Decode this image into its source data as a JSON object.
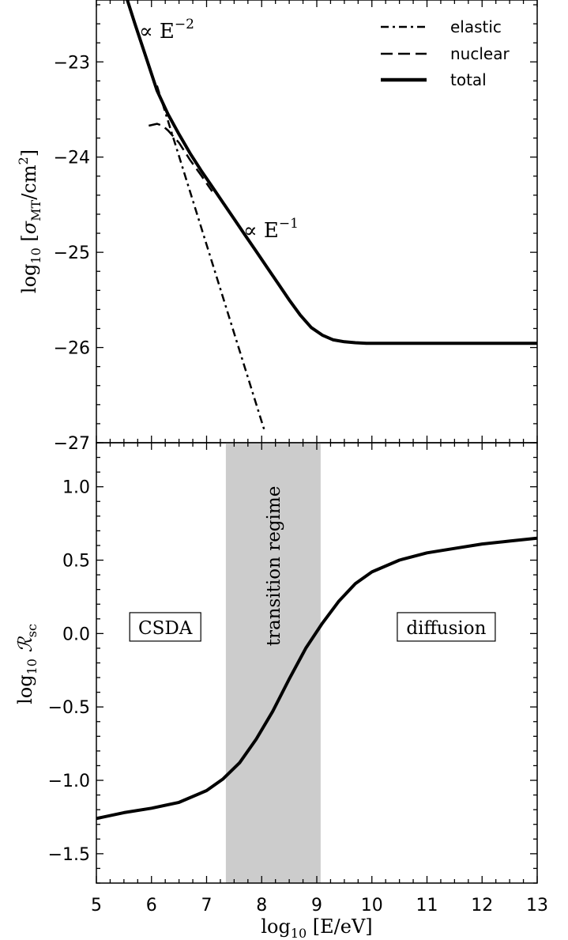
{
  "chart_data": [
    {
      "type": "line",
      "panel": "top",
      "title": "",
      "xlabel": "",
      "ylabel_parts": {
        "prefix": "log",
        "sub": "10",
        "bracket_open": " [",
        "sigma": "σ",
        "sigma_sub": "MT",
        "unit": "/cm",
        "unit_sup": "2",
        "bracket_close": "]"
      },
      "xlim": [
        5,
        13
      ],
      "ylim": [
        -27,
        -22.35
      ],
      "yticks": [
        -23,
        -24,
        -25,
        -26,
        -27
      ],
      "ytick_labels": [
        "−23",
        "−24",
        "−25",
        "−26",
        "−27"
      ],
      "grid": false,
      "legend": {
        "placement": "top-right",
        "entries": [
          {
            "label": "elastic",
            "style": "dash-dot"
          },
          {
            "label": "nuclear",
            "style": "dashed"
          },
          {
            "label": "total",
            "style": "solid-thick"
          }
        ]
      },
      "annotations": [
        {
          "text": "∝ E",
          "sup": "−2",
          "x": 5.78,
          "y": -22.65
        },
        {
          "text": "∝ E",
          "sup": "−1",
          "x": 7.68,
          "y": -24.85
        }
      ],
      "series": [
        {
          "name": "total",
          "style": "solid-thick",
          "x": [
            5.55,
            5.7,
            5.9,
            6.1,
            6.3,
            6.5,
            6.7,
            6.9,
            7.1,
            7.3,
            7.5,
            7.7,
            7.9,
            8.1,
            8.3,
            8.5,
            8.7,
            8.9,
            9.1,
            9.3,
            9.5,
            9.7,
            9.9,
            10.1,
            10.3,
            10.6,
            11.0,
            12.0,
            13.0
          ],
          "y": [
            -22.33,
            -22.6,
            -22.95,
            -23.3,
            -23.55,
            -23.76,
            -23.96,
            -24.14,
            -24.31,
            -24.48,
            -24.65,
            -24.82,
            -24.99,
            -25.16,
            -25.33,
            -25.5,
            -25.66,
            -25.79,
            -25.87,
            -25.92,
            -25.94,
            -25.95,
            -25.955,
            -25.955,
            -25.955,
            -25.955,
            -25.955,
            -25.955,
            -25.955
          ]
        },
        {
          "name": "elastic",
          "style": "dash-dot",
          "x": [
            6.1,
            6.5,
            7.0,
            7.5,
            8.0,
            8.05
          ],
          "y": [
            -23.25,
            -23.99,
            -24.92,
            -25.85,
            -26.78,
            -26.87
          ]
        },
        {
          "name": "nuclear",
          "style": "dashed",
          "x": [
            5.95,
            6.1,
            6.2,
            6.3,
            6.5,
            6.7,
            6.9,
            7.1
          ],
          "y": [
            -23.67,
            -23.65,
            -23.67,
            -23.72,
            -23.85,
            -24.03,
            -24.19,
            -24.36
          ]
        }
      ]
    },
    {
      "type": "line",
      "panel": "bottom",
      "title": "",
      "xlabel_parts": {
        "prefix": "log",
        "sub": "10",
        "rest": " [E/eV]"
      },
      "ylabel_parts": {
        "prefix": "log",
        "sub": "10",
        "R": " ℛ",
        "R_sub": "sc"
      },
      "xlim": [
        5,
        13
      ],
      "ylim": [
        -1.7,
        1.3
      ],
      "xticks": [
        5,
        6,
        7,
        8,
        9,
        10,
        11,
        12,
        13
      ],
      "xtick_labels": [
        "5",
        "6",
        "7",
        "8",
        "9",
        "10",
        "11",
        "12",
        "13"
      ],
      "yticks": [
        1.0,
        0.5,
        0.0,
        -0.5,
        -1.0,
        -1.5
      ],
      "ytick_labels": [
        "1.0",
        "0.5",
        "0.0",
        "−0.5",
        "−1.0",
        "−1.5"
      ],
      "grid": false,
      "shaded_region": {
        "x": [
          7.35,
          9.07
        ],
        "label": "transition regime",
        "color": "#cccccc"
      },
      "boxed_labels": [
        {
          "text": "CSDA",
          "x": 6.25,
          "y": 0.04
        },
        {
          "text": "diffusion",
          "x": 11.35,
          "y": 0.04
        }
      ],
      "series": [
        {
          "name": "",
          "style": "solid-thick",
          "x": [
            5.0,
            5.5,
            6.0,
            6.5,
            7.0,
            7.3,
            7.6,
            7.9,
            8.2,
            8.5,
            8.8,
            9.1,
            9.4,
            9.7,
            10.0,
            10.5,
            11.0,
            11.5,
            12.0,
            12.5,
            13.0
          ],
          "y": [
            -1.26,
            -1.22,
            -1.19,
            -1.15,
            -1.07,
            -0.99,
            -0.88,
            -0.72,
            -0.53,
            -0.31,
            -0.1,
            0.07,
            0.22,
            0.34,
            0.42,
            0.5,
            0.55,
            0.58,
            0.61,
            0.63,
            0.65
          ]
        }
      ]
    }
  ]
}
